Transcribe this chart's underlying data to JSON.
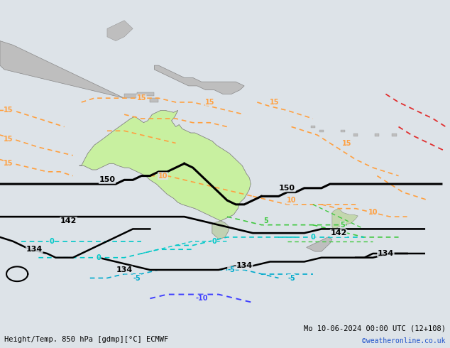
{
  "title_left": "Height/Temp. 850 hPa [gdmp][°C] ECMWF",
  "title_right": "Mo 10-06-2024 00:00 UTC (12+108)",
  "watermark": "©weatheronline.co.uk",
  "bg_color": "#dde3e8",
  "land_color": "#bebebe",
  "australia_green": "#c8f0a0",
  "fig_width": 6.34,
  "fig_height": 4.9,
  "dpi": 100,
  "xlim": [
    95,
    200
  ],
  "ylim": [
    -65,
    15
  ]
}
